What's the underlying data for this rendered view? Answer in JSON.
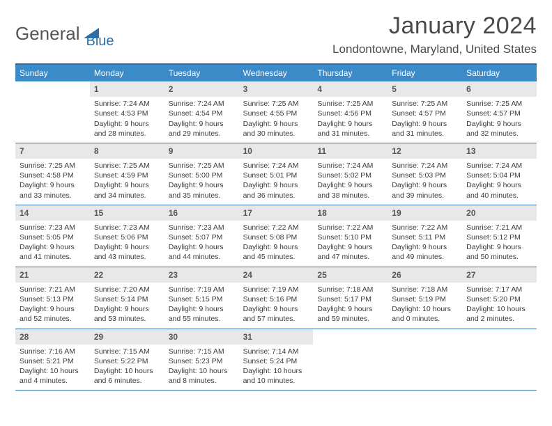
{
  "logo": {
    "part1": "General",
    "part2": "Blue"
  },
  "title": "January 2024",
  "location": "Londontowne, Maryland, United States",
  "colors": {
    "header_bg": "#3b8bc9",
    "border": "#2f6fa8",
    "daynum_bg": "#e8e8e8",
    "text": "#3a3a3a"
  },
  "day_headers": [
    "Sunday",
    "Monday",
    "Tuesday",
    "Wednesday",
    "Thursday",
    "Friday",
    "Saturday"
  ],
  "weeks": [
    [
      null,
      {
        "n": "1",
        "sunrise": "Sunrise: 7:24 AM",
        "sunset": "Sunset: 4:53 PM",
        "day1": "Daylight: 9 hours",
        "day2": "and 28 minutes."
      },
      {
        "n": "2",
        "sunrise": "Sunrise: 7:24 AM",
        "sunset": "Sunset: 4:54 PM",
        "day1": "Daylight: 9 hours",
        "day2": "and 29 minutes."
      },
      {
        "n": "3",
        "sunrise": "Sunrise: 7:25 AM",
        "sunset": "Sunset: 4:55 PM",
        "day1": "Daylight: 9 hours",
        "day2": "and 30 minutes."
      },
      {
        "n": "4",
        "sunrise": "Sunrise: 7:25 AM",
        "sunset": "Sunset: 4:56 PM",
        "day1": "Daylight: 9 hours",
        "day2": "and 31 minutes."
      },
      {
        "n": "5",
        "sunrise": "Sunrise: 7:25 AM",
        "sunset": "Sunset: 4:57 PM",
        "day1": "Daylight: 9 hours",
        "day2": "and 31 minutes."
      },
      {
        "n": "6",
        "sunrise": "Sunrise: 7:25 AM",
        "sunset": "Sunset: 4:57 PM",
        "day1": "Daylight: 9 hours",
        "day2": "and 32 minutes."
      }
    ],
    [
      {
        "n": "7",
        "sunrise": "Sunrise: 7:25 AM",
        "sunset": "Sunset: 4:58 PM",
        "day1": "Daylight: 9 hours",
        "day2": "and 33 minutes."
      },
      {
        "n": "8",
        "sunrise": "Sunrise: 7:25 AM",
        "sunset": "Sunset: 4:59 PM",
        "day1": "Daylight: 9 hours",
        "day2": "and 34 minutes."
      },
      {
        "n": "9",
        "sunrise": "Sunrise: 7:25 AM",
        "sunset": "Sunset: 5:00 PM",
        "day1": "Daylight: 9 hours",
        "day2": "and 35 minutes."
      },
      {
        "n": "10",
        "sunrise": "Sunrise: 7:24 AM",
        "sunset": "Sunset: 5:01 PM",
        "day1": "Daylight: 9 hours",
        "day2": "and 36 minutes."
      },
      {
        "n": "11",
        "sunrise": "Sunrise: 7:24 AM",
        "sunset": "Sunset: 5:02 PM",
        "day1": "Daylight: 9 hours",
        "day2": "and 38 minutes."
      },
      {
        "n": "12",
        "sunrise": "Sunrise: 7:24 AM",
        "sunset": "Sunset: 5:03 PM",
        "day1": "Daylight: 9 hours",
        "day2": "and 39 minutes."
      },
      {
        "n": "13",
        "sunrise": "Sunrise: 7:24 AM",
        "sunset": "Sunset: 5:04 PM",
        "day1": "Daylight: 9 hours",
        "day2": "and 40 minutes."
      }
    ],
    [
      {
        "n": "14",
        "sunrise": "Sunrise: 7:23 AM",
        "sunset": "Sunset: 5:05 PM",
        "day1": "Daylight: 9 hours",
        "day2": "and 41 minutes."
      },
      {
        "n": "15",
        "sunrise": "Sunrise: 7:23 AM",
        "sunset": "Sunset: 5:06 PM",
        "day1": "Daylight: 9 hours",
        "day2": "and 43 minutes."
      },
      {
        "n": "16",
        "sunrise": "Sunrise: 7:23 AM",
        "sunset": "Sunset: 5:07 PM",
        "day1": "Daylight: 9 hours",
        "day2": "and 44 minutes."
      },
      {
        "n": "17",
        "sunrise": "Sunrise: 7:22 AM",
        "sunset": "Sunset: 5:08 PM",
        "day1": "Daylight: 9 hours",
        "day2": "and 45 minutes."
      },
      {
        "n": "18",
        "sunrise": "Sunrise: 7:22 AM",
        "sunset": "Sunset: 5:10 PM",
        "day1": "Daylight: 9 hours",
        "day2": "and 47 minutes."
      },
      {
        "n": "19",
        "sunrise": "Sunrise: 7:22 AM",
        "sunset": "Sunset: 5:11 PM",
        "day1": "Daylight: 9 hours",
        "day2": "and 49 minutes."
      },
      {
        "n": "20",
        "sunrise": "Sunrise: 7:21 AM",
        "sunset": "Sunset: 5:12 PM",
        "day1": "Daylight: 9 hours",
        "day2": "and 50 minutes."
      }
    ],
    [
      {
        "n": "21",
        "sunrise": "Sunrise: 7:21 AM",
        "sunset": "Sunset: 5:13 PM",
        "day1": "Daylight: 9 hours",
        "day2": "and 52 minutes."
      },
      {
        "n": "22",
        "sunrise": "Sunrise: 7:20 AM",
        "sunset": "Sunset: 5:14 PM",
        "day1": "Daylight: 9 hours",
        "day2": "and 53 minutes."
      },
      {
        "n": "23",
        "sunrise": "Sunrise: 7:19 AM",
        "sunset": "Sunset: 5:15 PM",
        "day1": "Daylight: 9 hours",
        "day2": "and 55 minutes."
      },
      {
        "n": "24",
        "sunrise": "Sunrise: 7:19 AM",
        "sunset": "Sunset: 5:16 PM",
        "day1": "Daylight: 9 hours",
        "day2": "and 57 minutes."
      },
      {
        "n": "25",
        "sunrise": "Sunrise: 7:18 AM",
        "sunset": "Sunset: 5:17 PM",
        "day1": "Daylight: 9 hours",
        "day2": "and 59 minutes."
      },
      {
        "n": "26",
        "sunrise": "Sunrise: 7:18 AM",
        "sunset": "Sunset: 5:19 PM",
        "day1": "Daylight: 10 hours",
        "day2": "and 0 minutes."
      },
      {
        "n": "27",
        "sunrise": "Sunrise: 7:17 AM",
        "sunset": "Sunset: 5:20 PM",
        "day1": "Daylight: 10 hours",
        "day2": "and 2 minutes."
      }
    ],
    [
      {
        "n": "28",
        "sunrise": "Sunrise: 7:16 AM",
        "sunset": "Sunset: 5:21 PM",
        "day1": "Daylight: 10 hours",
        "day2": "and 4 minutes."
      },
      {
        "n": "29",
        "sunrise": "Sunrise: 7:15 AM",
        "sunset": "Sunset: 5:22 PM",
        "day1": "Daylight: 10 hours",
        "day2": "and 6 minutes."
      },
      {
        "n": "30",
        "sunrise": "Sunrise: 7:15 AM",
        "sunset": "Sunset: 5:23 PM",
        "day1": "Daylight: 10 hours",
        "day2": "and 8 minutes."
      },
      {
        "n": "31",
        "sunrise": "Sunrise: 7:14 AM",
        "sunset": "Sunset: 5:24 PM",
        "day1": "Daylight: 10 hours",
        "day2": "and 10 minutes."
      },
      null,
      null,
      null
    ]
  ]
}
